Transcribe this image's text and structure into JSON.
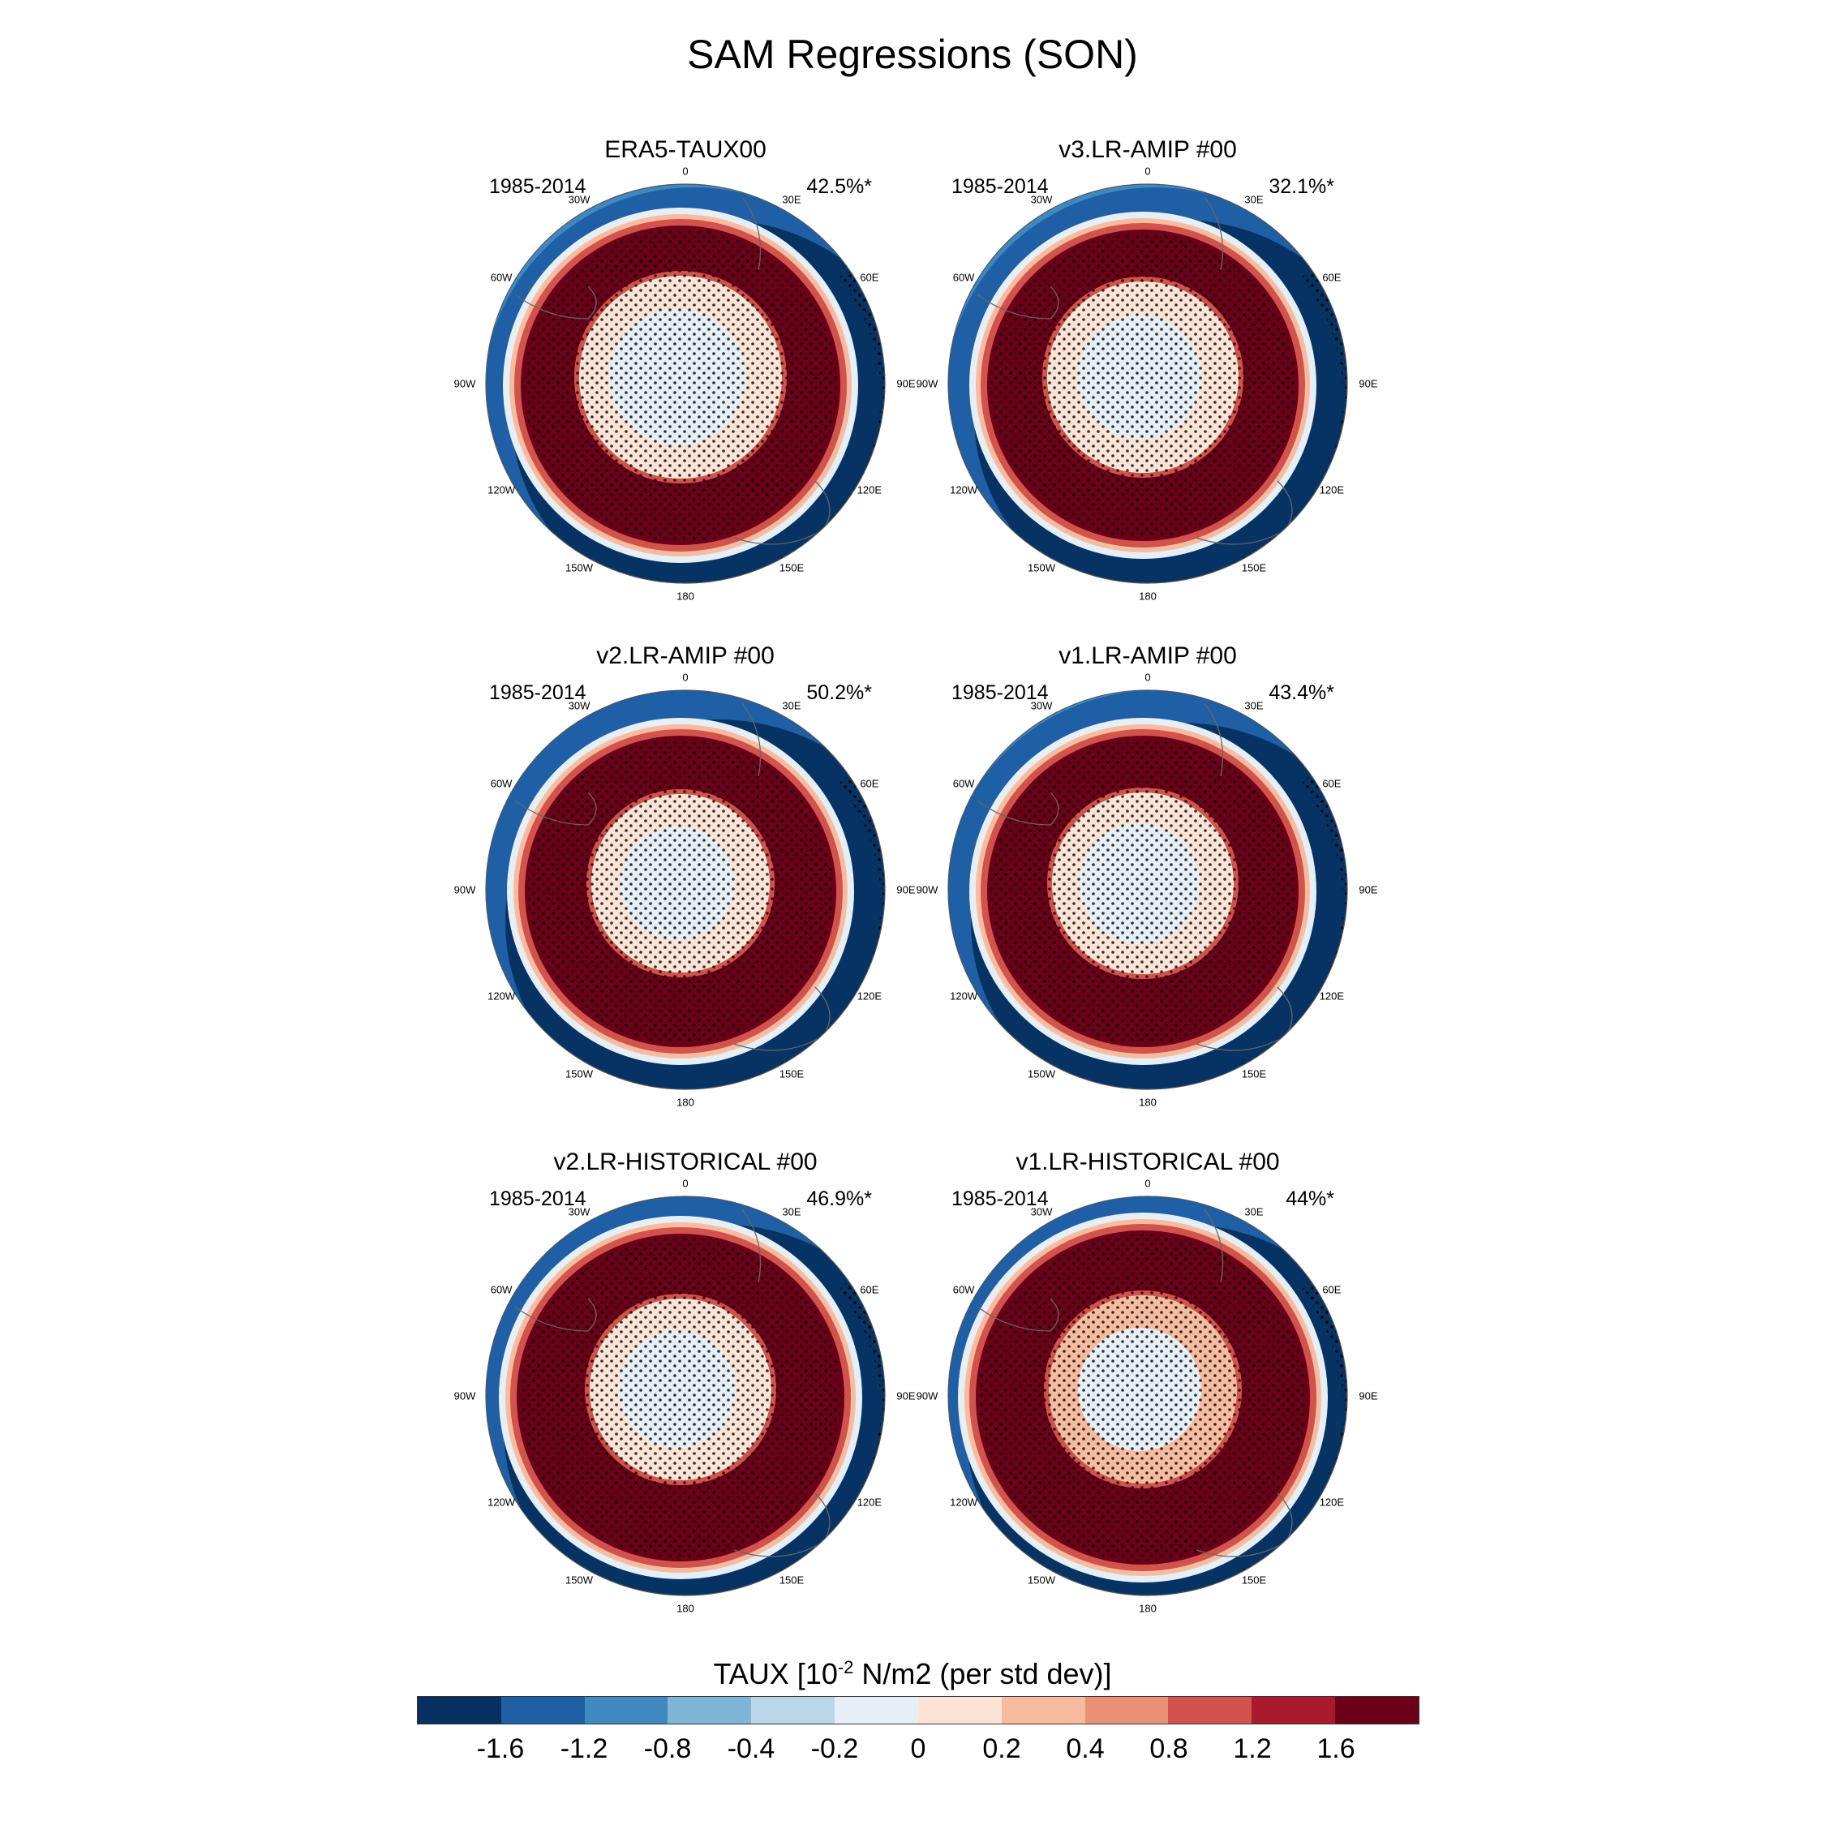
{
  "figure": {
    "title": "SAM Regressions (SON)",
    "colorbar_title_prefix": "TAUX [10",
    "colorbar_title_exp": "-2",
    "colorbar_title_suffix": " N/m2 (per std dev)]"
  },
  "colors": {
    "land_line": "#666666",
    "stipple": "#000000",
    "border": "#555555"
  },
  "colorbar": {
    "colors": [
      "#05305f",
      "#1f5fa5",
      "#3f88c0",
      "#7fb6d8",
      "#bad6e9",
      "#e6eff6",
      "#fbe4d6",
      "#f7bc9f",
      "#ea9176",
      "#d1534b",
      "#a91b2c",
      "#6b0019"
    ],
    "labels": [
      "-1.6",
      "-1.2",
      "-0.8",
      "-0.4",
      "-0.2",
      "0",
      "0.2",
      "0.4",
      "0.8",
      "1.2",
      "1.6"
    ]
  },
  "longitude_labels": [
    "0",
    "30E",
    "60E",
    "90E",
    "120E",
    "150E",
    "180",
    "150W",
    "120W",
    "90W",
    "60W",
    "30W"
  ],
  "panels": [
    {
      "title": "ERA5-TAUX00",
      "years": "1985-2014",
      "percent": "42.5%*",
      "variant": "era5"
    },
    {
      "title": "v3.LR-AMIP  #00",
      "years": "1985-2014",
      "percent": "32.1%*",
      "variant": "v3"
    },
    {
      "title": "v2.LR-AMIP  #00",
      "years": "1985-2014",
      "percent": "50.2%*",
      "variant": "v2amip"
    },
    {
      "title": "v1.LR-AMIP  #00",
      "years": "1985-2014",
      "percent": "43.4%*",
      "variant": "v1amip"
    },
    {
      "title": "v2.LR-HISTORICAL  #00",
      "years": "1985-2014",
      "percent": "46.9%*",
      "variant": "v2hist"
    },
    {
      "title": "v1.LR-HISTORICAL  #00",
      "years": "1985-2014",
      "percent": "44%*",
      "variant": "v1hist"
    }
  ]
}
